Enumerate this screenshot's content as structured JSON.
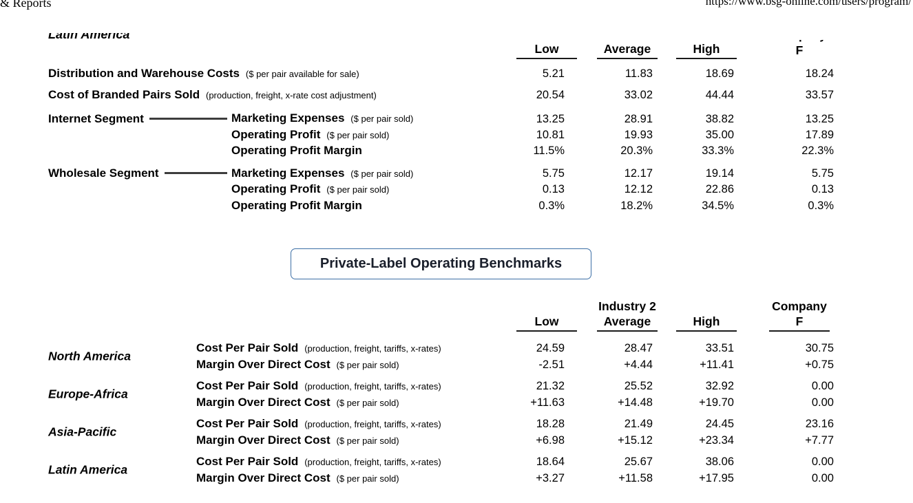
{
  "page": {
    "print_header_left": "& Reports",
    "print_header_right": "https://www.bsg-online.com/users/program/"
  },
  "col_headers": {
    "low": "Low",
    "average": "Average",
    "high": "High",
    "company_word": "Company",
    "company_letter": "F"
  },
  "branded_benchmarks": {
    "region_title": "Latin America",
    "rows": [
      {
        "label": "Distribution and Warehouse Costs",
        "note": "($ per pair available for sale)",
        "low": "5.21",
        "average": "11.83",
        "high": "18.69",
        "company": "18.24"
      },
      {
        "label": "Cost of Branded Pairs Sold",
        "note": "(production, freight, x-rate cost adjustment)",
        "low": "20.54",
        "average": "33.02",
        "high": "44.44",
        "company": "33.57"
      }
    ],
    "segments": [
      {
        "name": "Internet Segment",
        "rows": [
          {
            "label": "Marketing Expenses",
            "note": "($ per pair sold)",
            "low": "13.25",
            "average": "28.91",
            "high": "38.82",
            "company": "13.25"
          },
          {
            "label": "Operating Profit",
            "note": "($ per pair sold)",
            "low": "10.81",
            "average": "19.93",
            "high": "35.00",
            "company": "17.89"
          },
          {
            "label": "Operating Profit Margin",
            "note": "",
            "low": "11.5%",
            "average": "20.3%",
            "high": "33.3%",
            "company": "22.3%"
          }
        ]
      },
      {
        "name": "Wholesale Segment",
        "rows": [
          {
            "label": "Marketing Expenses",
            "note": "($ per pair sold)",
            "low": "5.75",
            "average": "12.17",
            "high": "19.14",
            "company": "5.75"
          },
          {
            "label": "Operating Profit",
            "note": "($ per pair sold)",
            "low": "0.13",
            "average": "12.12",
            "high": "22.86",
            "company": "0.13"
          },
          {
            "label": "Operating Profit Margin",
            "note": "",
            "low": "0.3%",
            "average": "18.2%",
            "high": "34.5%",
            "company": "0.3%"
          }
        ]
      }
    ]
  },
  "section_title": "Private-Label Operating Benchmarks",
  "private_label": {
    "industry_label": "Industry 2",
    "groups": [
      {
        "region": "North America",
        "rows": [
          {
            "label": "Cost Per Pair Sold",
            "note": "(production, freight, tariffs, x-rates)",
            "low": "24.59",
            "average": "28.47",
            "high": "33.51",
            "company": "30.75"
          },
          {
            "label": "Margin Over Direct Cost",
            "note": "($ per pair sold)",
            "low": "-2.51",
            "average": "+4.44",
            "high": "+11.41",
            "company": "+0.75"
          }
        ]
      },
      {
        "region": "Europe-Africa",
        "rows": [
          {
            "label": "Cost Per Pair Sold",
            "note": "(production, freight, tariffs, x-rates)",
            "low": "21.32",
            "average": "25.52",
            "high": "32.92",
            "company": "0.00"
          },
          {
            "label": "Margin Over Direct Cost",
            "note": "($ per pair sold)",
            "low": "+11.63",
            "average": "+14.48",
            "high": "+19.70",
            "company": "0.00"
          }
        ]
      },
      {
        "region": "Asia-Pacific",
        "rows": [
          {
            "label": "Cost Per Pair Sold",
            "note": "(production, freight, tariffs, x-rates)",
            "low": "18.28",
            "average": "21.49",
            "high": "24.45",
            "company": "23.16"
          },
          {
            "label": "Margin Over Direct Cost",
            "note": "($ per pair sold)",
            "low": "+6.98",
            "average": "+15.12",
            "high": "+23.34",
            "company": "+7.77"
          }
        ]
      },
      {
        "region": "Latin America",
        "rows": [
          {
            "label": "Cost Per Pair Sold",
            "note": "(production, freight, tariffs, x-rates)",
            "low": "18.64",
            "average": "25.67",
            "high": "38.06",
            "company": "0.00"
          },
          {
            "label": "Margin Over Direct Cost",
            "note": "($ per pair sold)",
            "low": "+3.27",
            "average": "+11.58",
            "high": "+17.95",
            "company": "0.00"
          }
        ]
      }
    ]
  }
}
